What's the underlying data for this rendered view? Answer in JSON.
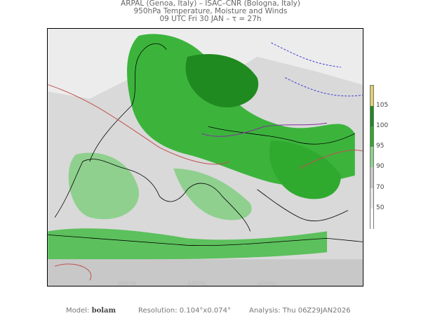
{
  "header": {
    "line1": "ARPAL (Genoa, Italy)  –  ISAC–CNR (Bologna, Italy)",
    "line2": "950hPa Temperature, Moisture and Winds",
    "line3": "09 UTC Fri 30 JAN  –  τ = 27h"
  },
  "map": {
    "watermark": "ARPAL"
  },
  "colorbar": {
    "labels": [
      "105",
      "100",
      "95",
      "90",
      "70",
      "50"
    ],
    "colors": [
      "#e0d070",
      "#1f8a1f",
      "#2faa2f",
      "#8fd08f",
      "#c8c8c8",
      "#e6e6e6",
      "#ffffff"
    ]
  },
  "footer": {
    "model_label": "Model:",
    "model_value": "bolam",
    "resolution": "Resolution: 0.104°x0.074°",
    "analysis": "Analysis: Thu  06Z29JAN2026"
  }
}
